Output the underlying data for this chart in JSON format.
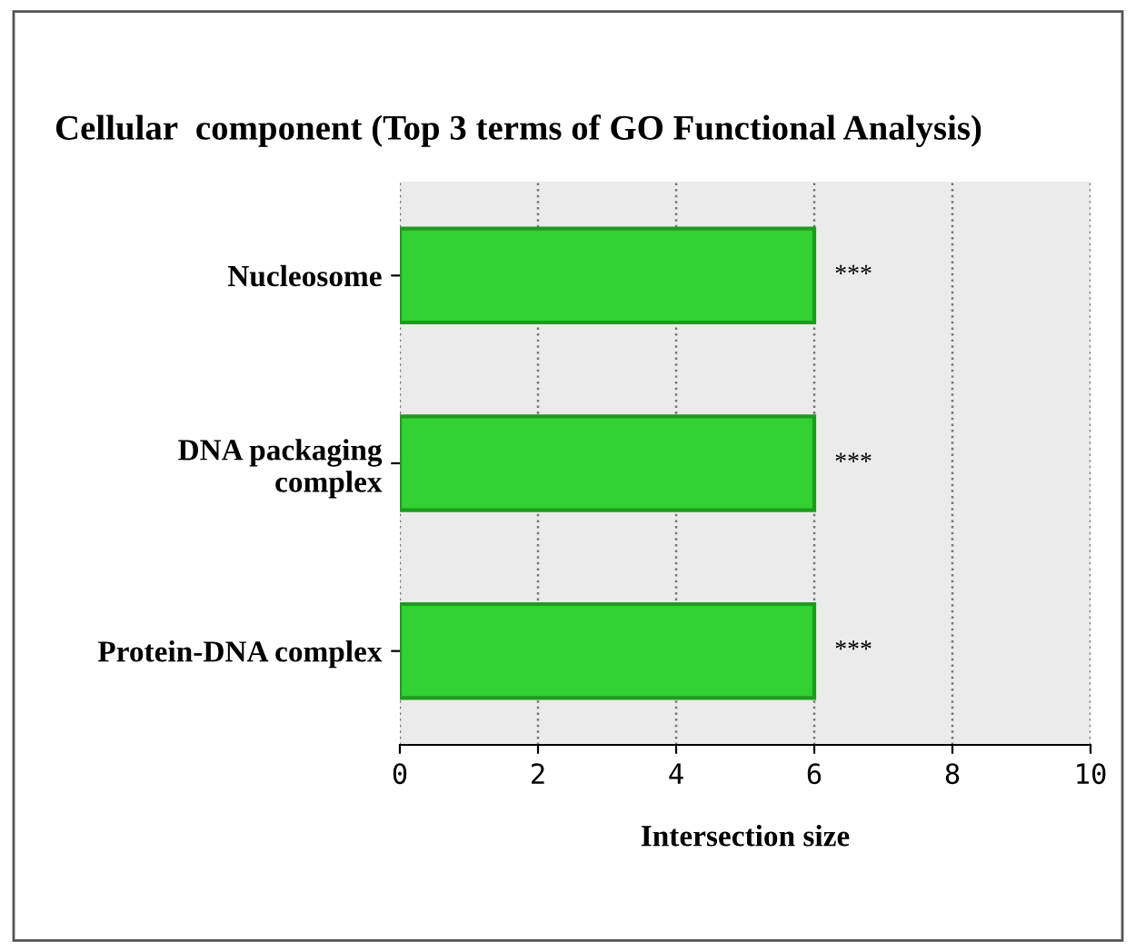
{
  "chart_data": {
    "type": "bar",
    "orientation": "horizontal",
    "title": "Cellular  component (Top 3 terms of GO Functional Analysis)",
    "xlabel": "Intersection size",
    "categories": [
      "Nucleosome",
      "DNA packaging\ncomplex",
      "Protein-DNA complex"
    ],
    "values": [
      6,
      6,
      6
    ],
    "color": "#33d133",
    "xlim": [
      0,
      10
    ],
    "xticks": [
      0,
      2,
      4,
      6,
      8,
      10
    ],
    "grid": "x",
    "value_labels": [
      "***",
      "***",
      "***"
    ]
  }
}
